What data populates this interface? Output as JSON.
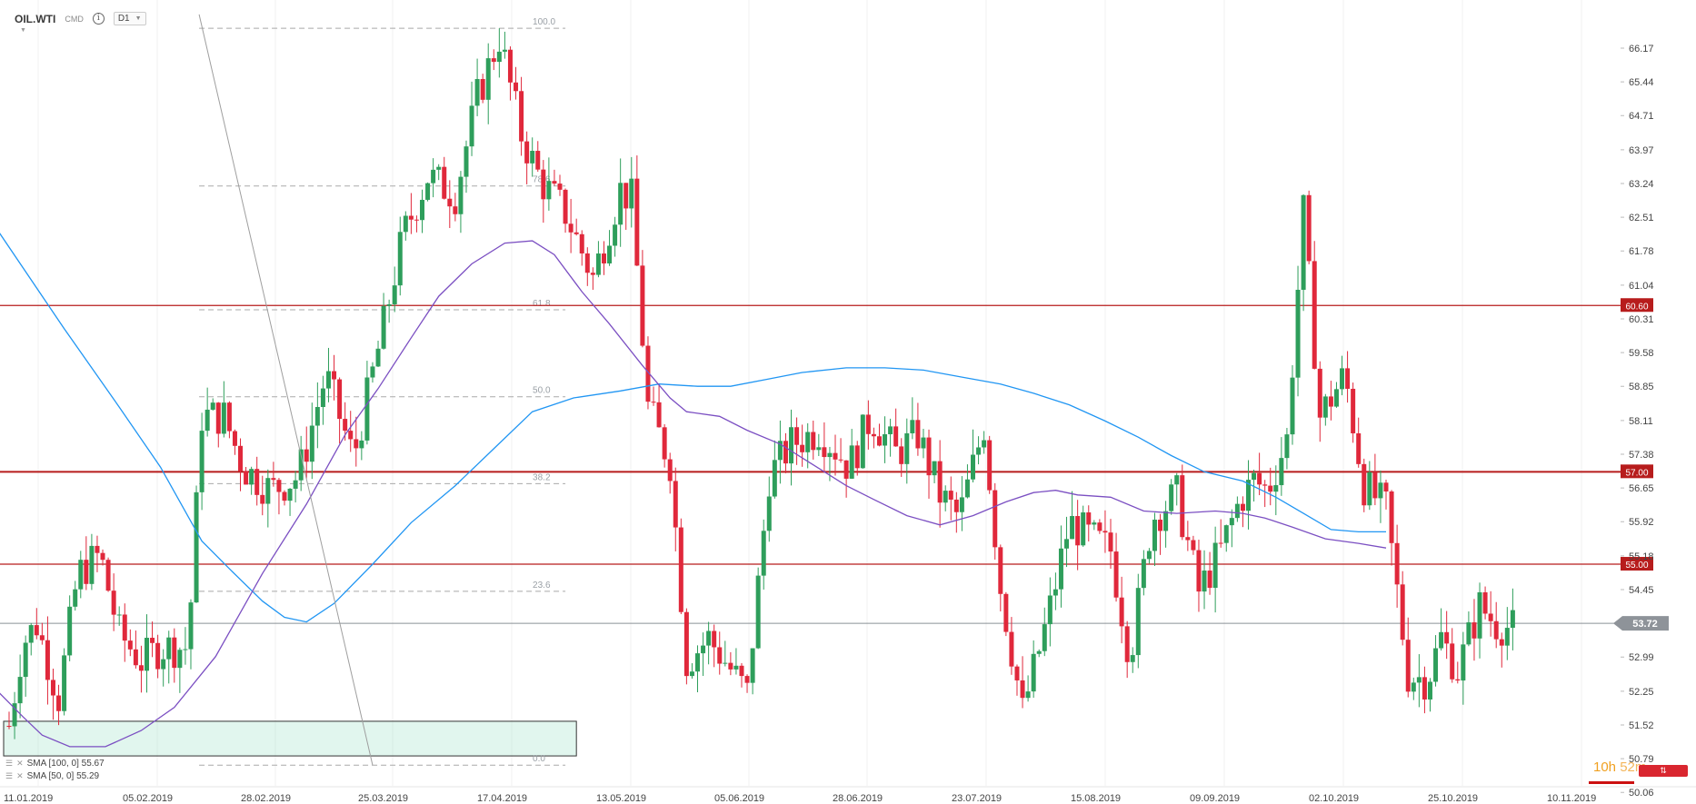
{
  "header": {
    "symbol": "OIL.WTI",
    "exchange": "CMD",
    "timeframe": "D1",
    "info_icon": "info-icon"
  },
  "indicators": [
    {
      "label": "SMA [100, 0] 55.67",
      "color": "#2196f3"
    },
    {
      "label": "SMA [50, 0] 55.29",
      "color": "#7b4fc2"
    }
  ],
  "timer": {
    "hours": "10h",
    "minutes": "52m"
  },
  "chart_data": {
    "type": "candlestick",
    "y_ticks": [
      66.17,
      65.44,
      64.71,
      63.97,
      63.24,
      62.51,
      61.78,
      61.04,
      60.31,
      59.58,
      58.85,
      58.11,
      57.38,
      56.65,
      55.92,
      55.18,
      54.45,
      53.72,
      52.99,
      52.25,
      51.52,
      50.79,
      50.06
    ],
    "ylim": [
      50.06,
      66.9
    ],
    "x_labels": [
      "11.01.2019",
      "05.02.2019",
      "28.02.2019",
      "25.03.2019",
      "17.04.2019",
      "13.05.2019",
      "05.06.2019",
      "28.06.2019",
      "23.07.2019",
      "15.08.2019",
      "09.09.2019",
      "02.10.2019",
      "25.10.2019",
      "10.11.2019"
    ],
    "current_price": 53.72,
    "current_price_label": "53.72",
    "horizontal_levels": [
      {
        "value": 60.6,
        "label": "60.60",
        "color": "#b71c1c"
      },
      {
        "value": 57.0,
        "label": "57.00",
        "color": "#b71c1c"
      },
      {
        "value": 55.0,
        "label": "55.00",
        "color": "#b71c1c"
      }
    ],
    "fibonacci": {
      "high": 66.6,
      "low": 50.65,
      "start_index": 69,
      "end_index": 202,
      "levels": [
        {
          "pct": 100.0,
          "label": "100.0"
        },
        {
          "pct": 78.6,
          "label": "78.6"
        },
        {
          "pct": 61.8,
          "label": "61.8"
        },
        {
          "pct": 50.0,
          "label": "50.0"
        },
        {
          "pct": 38.2,
          "label": "38.2"
        },
        {
          "pct": 23.6,
          "label": "23.6"
        },
        {
          "pct": 0.0,
          "label": "0.0"
        }
      ]
    },
    "support_zone": {
      "from_index": 0,
      "to_index": 206,
      "low": 50.85,
      "high": 51.6
    },
    "trendline": {
      "from_index": 69,
      "from_price": 66.9,
      "to_index": 132,
      "to_price": 50.65
    },
    "anchors": {
      "close": [
        [
          0,
          51.5
        ],
        [
          5,
          53.3
        ],
        [
          10,
          53.7
        ],
        [
          18,
          52.1
        ],
        [
          25,
          54.8
        ],
        [
          33,
          55.2
        ],
        [
          40,
          53.5
        ],
        [
          48,
          52.9
        ],
        [
          55,
          53.2
        ],
        [
          65,
          53.2
        ],
        [
          70,
          58.2
        ],
        [
          78,
          58.2
        ],
        [
          85,
          57.1
        ],
        [
          95,
          56.6
        ],
        [
          105,
          56.9
        ],
        [
          115,
          59.1
        ],
        [
          125,
          57.3
        ],
        [
          135,
          59.9
        ],
        [
          143,
          62.1
        ],
        [
          152,
          63.4
        ],
        [
          162,
          63.0
        ],
        [
          170,
          65.1
        ],
        [
          178,
          66.4
        ],
        [
          186,
          64.3
        ],
        [
          193,
          63.3
        ],
        [
          202,
          62.6
        ],
        [
          212,
          61.2
        ],
        [
          222,
          63.1
        ],
        [
          226,
          62.9
        ],
        [
          232,
          58.4
        ],
        [
          240,
          57.2
        ],
        [
          246,
          52.9
        ],
        [
          254,
          53.4
        ],
        [
          260,
          52.9
        ],
        [
          268,
          52.2
        ],
        [
          276,
          56.9
        ],
        [
          284,
          57.6
        ],
        [
          294,
          57.9
        ],
        [
          300,
          57.5
        ],
        [
          305,
          57.1
        ],
        [
          313,
          58.2
        ],
        [
          322,
          57.4
        ],
        [
          330,
          57.8
        ],
        [
          338,
          56.5
        ],
        [
          345,
          56.0
        ],
        [
          354,
          58.0
        ],
        [
          360,
          54.5
        ],
        [
          368,
          51.8
        ],
        [
          377,
          53.8
        ],
        [
          385,
          55.9
        ],
        [
          392,
          55.6
        ],
        [
          400,
          55.3
        ],
        [
          407,
          53.0
        ],
        [
          415,
          56.0
        ],
        [
          424,
          56.5
        ],
        [
          432,
          54.4
        ],
        [
          440,
          55.3
        ],
        [
          447,
          56.4
        ],
        [
          452,
          56.8
        ],
        [
          457,
          56.6
        ],
        [
          464,
          57.7
        ],
        [
          470,
          62.6
        ],
        [
          476,
          58.2
        ],
        [
          485,
          59.1
        ],
        [
          492,
          56.7
        ],
        [
          500,
          56.2
        ],
        [
          508,
          52.6
        ],
        [
          515,
          52.5
        ],
        [
          520,
          53.4
        ],
        [
          526,
          52.7
        ],
        [
          534,
          54.1
        ],
        [
          540,
          53.7
        ],
        [
          547,
          53.6
        ]
      ]
    },
    "sma100_points": [
      [
        -5,
        62.3
      ],
      [
        20,
        60.1
      ],
      [
        40,
        58.4
      ],
      [
        55,
        57.1
      ],
      [
        70,
        55.5
      ],
      [
        80,
        54.9
      ],
      [
        92,
        54.2
      ],
      [
        100,
        53.85
      ],
      [
        108,
        53.75
      ],
      [
        118,
        54.15
      ],
      [
        132,
        55.0
      ],
      [
        146,
        55.9
      ],
      [
        162,
        56.7
      ],
      [
        176,
        57.5
      ],
      [
        190,
        58.3
      ],
      [
        205,
        58.6
      ],
      [
        222,
        58.75
      ],
      [
        236,
        58.9
      ],
      [
        250,
        58.85
      ],
      [
        262,
        58.85
      ],
      [
        275,
        59.0
      ],
      [
        288,
        59.15
      ],
      [
        304,
        59.25
      ],
      [
        318,
        59.25
      ],
      [
        332,
        59.2
      ],
      [
        346,
        59.05
      ],
      [
        360,
        58.9
      ],
      [
        372,
        58.7
      ],
      [
        385,
        58.45
      ],
      [
        398,
        58.1
      ],
      [
        410,
        57.75
      ],
      [
        422,
        57.35
      ],
      [
        434,
        57.0
      ],
      [
        448,
        56.8
      ],
      [
        460,
        56.45
      ],
      [
        470,
        56.1
      ],
      [
        480,
        55.75
      ],
      [
        490,
        55.7
      ],
      [
        500,
        55.7
      ]
    ],
    "sma50_points": [
      [
        -5,
        52.3
      ],
      [
        5,
        51.7
      ],
      [
        12,
        51.3
      ],
      [
        22,
        51.05
      ],
      [
        35,
        51.05
      ],
      [
        48,
        51.4
      ],
      [
        60,
        51.9
      ],
      [
        75,
        53.0
      ],
      [
        92,
        54.8
      ],
      [
        108,
        56.3
      ],
      [
        122,
        57.8
      ],
      [
        134,
        58.8
      ],
      [
        146,
        59.9
      ],
      [
        156,
        60.8
      ],
      [
        168,
        61.5
      ],
      [
        180,
        61.95
      ],
      [
        190,
        62.0
      ],
      [
        198,
        61.7
      ],
      [
        208,
        60.9
      ],
      [
        218,
        60.2
      ],
      [
        230,
        59.3
      ],
      [
        240,
        58.6
      ],
      [
        246,
        58.3
      ],
      [
        258,
        58.2
      ],
      [
        268,
        57.9
      ],
      [
        280,
        57.6
      ],
      [
        292,
        57.15
      ],
      [
        304,
        56.7
      ],
      [
        314,
        56.4
      ],
      [
        326,
        56.05
      ],
      [
        338,
        55.85
      ],
      [
        350,
        56.05
      ],
      [
        362,
        56.35
      ],
      [
        372,
        56.55
      ],
      [
        380,
        56.6
      ],
      [
        388,
        56.5
      ],
      [
        400,
        56.45
      ],
      [
        412,
        56.15
      ],
      [
        424,
        56.1
      ],
      [
        438,
        56.15
      ],
      [
        448,
        56.1
      ],
      [
        456,
        56.0
      ],
      [
        466,
        55.8
      ],
      [
        478,
        55.55
      ],
      [
        490,
        55.45
      ],
      [
        500,
        55.35
      ]
    ]
  }
}
